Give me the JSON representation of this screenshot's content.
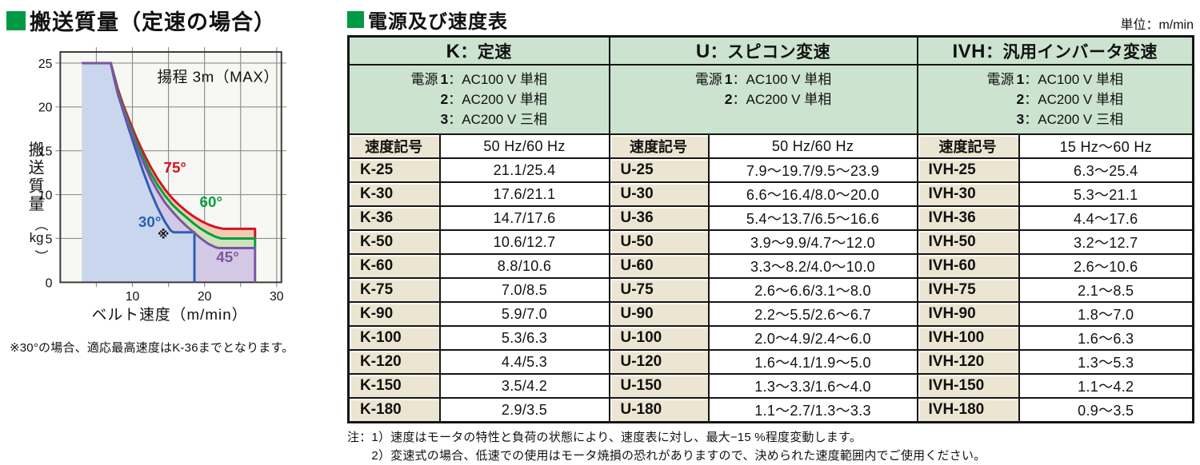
{
  "left_panel": {
    "title": "搬送質量（定速の場合）",
    "note": "※30°の場合、適応最高速度はK-36までとなります。",
    "chart_data": {
      "type": "line",
      "title": "搬送質量（定速の場合）",
      "annotation": "揚程 3m（MAX）",
      "xlabel": "ベルト速度（m/min）",
      "ylabel_main": "搬送質量",
      "ylabel_unit": "kg",
      "xlim": [
        0,
        30
      ],
      "ylim": [
        0,
        25
      ],
      "x_ticks": [
        10,
        20,
        30
      ],
      "y_ticks": [
        0,
        5,
        10,
        15,
        20,
        25
      ],
      "x_grid": [
        5,
        10,
        15,
        20,
        25,
        30
      ],
      "y_grid": [
        5,
        10,
        15,
        20,
        25
      ],
      "grid": true,
      "marker": {
        "text": "※",
        "at": [
          14.3,
          5.0
        ]
      },
      "series": [
        {
          "name": "75°",
          "color": "#d31420",
          "fill": "#f3cbb3",
          "label_at": [
            15.9,
            12.5
          ],
          "points": [
            [
              3,
              25
            ],
            [
              7,
              25
            ],
            [
              7.5,
              23.5
            ],
            [
              8,
              22
            ],
            [
              8.7,
              20.3
            ],
            [
              9.5,
              18.6
            ],
            [
              10.5,
              16.6
            ],
            [
              11.5,
              14.8
            ],
            [
              12.5,
              13.2
            ],
            [
              13.5,
              11.8
            ],
            [
              14.5,
              10.6
            ],
            [
              15.5,
              9.6
            ],
            [
              16.5,
              8.8
            ],
            [
              17.5,
              8.1
            ],
            [
              18.5,
              7.5
            ],
            [
              19.5,
              7.0
            ],
            [
              20.5,
              6.6
            ],
            [
              21.5,
              6.3
            ],
            [
              22.5,
              6.12
            ],
            [
              23,
              6.1
            ],
            [
              27,
              6.1
            ],
            [
              27,
              5.0
            ]
          ]
        },
        {
          "name": "60°",
          "color": "#00a040",
          "fill": "#cfe1bd",
          "label_at": [
            20.9,
            8.6
          ],
          "points": [
            [
              3,
              25
            ],
            [
              7,
              25
            ],
            [
              7.5,
              23.3
            ],
            [
              8,
              21.7
            ],
            [
              8.7,
              20.0
            ],
            [
              9.5,
              18.2
            ],
            [
              10.5,
              16.1
            ],
            [
              11.5,
              14.2
            ],
            [
              12.5,
              12.5
            ],
            [
              13.5,
              11.1
            ],
            [
              14.5,
              9.9
            ],
            [
              15.5,
              8.9
            ],
            [
              16.5,
              8.1
            ],
            [
              17.5,
              7.4
            ],
            [
              18.5,
              6.7
            ],
            [
              19.5,
              6.1
            ],
            [
              20.5,
              5.6
            ],
            [
              21.5,
              5.2
            ],
            [
              22.3,
              5.0
            ],
            [
              27,
              5.0
            ],
            [
              27,
              3.9
            ]
          ]
        },
        {
          "name": "45°",
          "color": "#7a55a2",
          "fill": "#d4c9e5",
          "label_at": [
            23.2,
            2.3
          ],
          "points": [
            [
              3,
              25
            ],
            [
              7,
              25
            ],
            [
              7.5,
              23.2
            ],
            [
              8,
              21.5
            ],
            [
              8.7,
              19.8
            ],
            [
              9.5,
              17.9
            ],
            [
              10.5,
              15.7
            ],
            [
              11.5,
              13.7
            ],
            [
              12.5,
              11.9
            ],
            [
              13.5,
              10.4
            ],
            [
              14.5,
              9.1
            ],
            [
              15.5,
              8.1
            ],
            [
              16.5,
              7.2
            ],
            [
              17.5,
              6.4
            ],
            [
              18.5,
              5.7
            ],
            [
              19.5,
              5.0
            ],
            [
              20.5,
              4.4
            ],
            [
              21.5,
              4.0
            ],
            [
              22,
              3.9
            ],
            [
              27,
              3.9
            ],
            [
              27,
              0
            ]
          ]
        },
        {
          "name": "30°",
          "color": "#2b5fb5",
          "fill": "#cad6ed",
          "label_at": [
            12.4,
            6.3
          ],
          "points": [
            [
              3,
              25
            ],
            [
              7,
              25
            ],
            [
              7.5,
              23.1
            ],
            [
              8,
              21.4
            ],
            [
              8.7,
              19.6
            ],
            [
              9.5,
              17.5
            ],
            [
              10.5,
              15.0
            ],
            [
              11.5,
              12.6
            ],
            [
              12.5,
              10.4
            ],
            [
              13.5,
              8.5
            ],
            [
              14.5,
              6.9
            ],
            [
              15.3,
              5.9
            ],
            [
              15.7,
              5.7
            ],
            [
              18.6,
              5.7
            ],
            [
              18.6,
              0
            ]
          ]
        }
      ]
    }
  },
  "table_panel": {
    "title": "電源及び速度表",
    "unit_label": "単位：m/min",
    "sections": [
      {
        "prefix": "K",
        "suffix": "：定速",
        "power": {
          "label": "電源",
          "lines": [
            {
              "num": "1",
              "text": "：AC100 V 単相"
            },
            {
              "num": "2",
              "text": "：AC200 V 単相"
            },
            {
              "num": "3",
              "text": "：AC200 V 三相"
            }
          ]
        },
        "col_headers": {
          "code": "速度記号",
          "value": "50 Hz/60 Hz"
        },
        "rows": [
          [
            "K-25",
            "21.1/25.4"
          ],
          [
            "K-30",
            "17.6/21.1"
          ],
          [
            "K-36",
            "14.7/17.6"
          ],
          [
            "K-50",
            "10.6/12.7"
          ],
          [
            "K-60",
            "8.8/10.6"
          ],
          [
            "K-75",
            "7.0/8.5"
          ],
          [
            "K-90",
            "5.9/7.0"
          ],
          [
            "K-100",
            "5.3/6.3"
          ],
          [
            "K-120",
            "4.4/5.3"
          ],
          [
            "K-150",
            "3.5/4.2"
          ],
          [
            "K-180",
            "2.9/3.5"
          ]
        ]
      },
      {
        "prefix": "U",
        "suffix": "：スピコン変速",
        "power": {
          "label": "電源",
          "lines": [
            {
              "num": "1",
              "text": "：AC100 V 単相"
            },
            {
              "num": "2",
              "text": "：AC200 V 単相"
            }
          ]
        },
        "col_headers": {
          "code": "速度記号",
          "value": "50 Hz/60 Hz"
        },
        "rows": [
          [
            "U-25",
            "7.9～19.7/9.5～23.9"
          ],
          [
            "U-30",
            "6.6～16.4/8.0～20.0"
          ],
          [
            "U-36",
            "5.4～13.7/6.5～16.6"
          ],
          [
            "U-50",
            "3.9～9.9/4.7～12.0"
          ],
          [
            "U-60",
            "3.3～8.2/4.0～10.0"
          ],
          [
            "U-75",
            "2.6～6.6/3.1～8.0"
          ],
          [
            "U-90",
            "2.2～5.5/2.6～6.7"
          ],
          [
            "U-100",
            "2.0～4.9/2.4～6.0"
          ],
          [
            "U-120",
            "1.6～4.1/1.9～5.0"
          ],
          [
            "U-150",
            "1.3～3.3/1.6～4.0"
          ],
          [
            "U-180",
            "1.1～2.7/1.3～3.3"
          ]
        ]
      },
      {
        "prefix": "IVH",
        "suffix": "：汎用インバータ変速",
        "power": {
          "label": "電源",
          "lines": [
            {
              "num": "1",
              "text": "：AC100 V 単相"
            },
            {
              "num": "2",
              "text": "：AC200 V 単相"
            },
            {
              "num": "3",
              "text": "：AC200 V 三相"
            }
          ]
        },
        "col_headers": {
          "code": "速度記号",
          "value": "15 Hz～60 Hz"
        },
        "rows": [
          [
            "IVH-25",
            "6.3～25.4"
          ],
          [
            "IVH-30",
            "5.3～21.1"
          ],
          [
            "IVH-36",
            "4.4～17.6"
          ],
          [
            "IVH-50",
            "3.2～12.7"
          ],
          [
            "IVH-60",
            "2.6～10.6"
          ],
          [
            "IVH-75",
            "2.1～8.5"
          ],
          [
            "IVH-90",
            "1.8～7.0"
          ],
          [
            "IVH-100",
            "1.6～6.3"
          ],
          [
            "IVH-120",
            "1.3～5.3"
          ],
          [
            "IVH-150",
            "1.1～4.2"
          ],
          [
            "IVH-180",
            "0.9～3.5"
          ]
        ]
      }
    ],
    "notes": {
      "prefix": "注：",
      "lines": [
        "1）速度はモータの特性と負荷の状態により、速度表に対し、最大−15 %程度変動します。",
        "2）変速式の場合、低速での使用はモータ焼損の恐れがありますので、決められた速度範囲内でご使用ください。"
      ]
    }
  }
}
